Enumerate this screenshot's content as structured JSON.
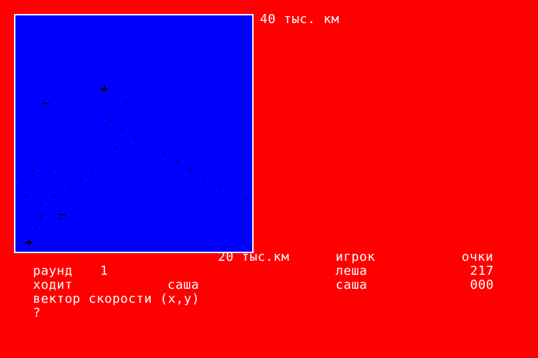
{
  "colors": {
    "background": "#ff0000",
    "field": "#0000ff",
    "field_border": "#ffffff",
    "text": "#ffffff",
    "marks": "#000000"
  },
  "field": {
    "top_scale_label": "40 тыс. км",
    "bottom_scale_label": "20 тыс.км",
    "markers": [
      {
        "symbol": "+",
        "icon": "plus-marker"
      },
      {
        "symbol": "−",
        "icon": "minus-marker"
      },
      {
        "symbol": "−",
        "icon": "minus-marker"
      },
      {
        "symbol": "+",
        "icon": "plus-marker"
      }
    ]
  },
  "scores": {
    "player_header": "игрок",
    "points_header": "очки",
    "rows": [
      {
        "player": "леша",
        "points": "217"
      },
      {
        "player": "саша",
        "points": "000"
      }
    ]
  },
  "status": {
    "round_label": "раунд",
    "round_value": "1",
    "turn_label": "ходит",
    "turn_value": "саша",
    "prompt_text": "вектор скорости (x,y)",
    "input_prompt": "?"
  }
}
